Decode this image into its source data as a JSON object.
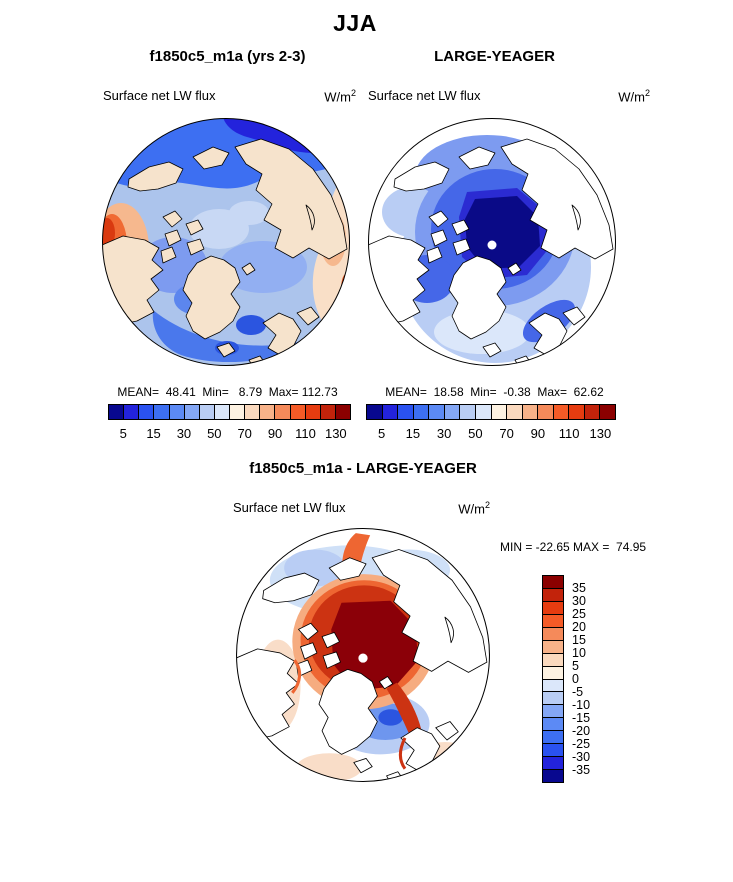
{
  "title": "JJA",
  "panels": [
    {
      "title": "f1850c5_m1a (yrs 2-3)",
      "field": "Surface net LW flux",
      "units_base": "W/m",
      "units_exp": "2",
      "stats": "MEAN=  48.41  Min=   8.79  Max= 112.73"
    },
    {
      "title": "LARGE-YEAGER",
      "field": "Surface net LW flux",
      "units_base": "W/m",
      "units_exp": "2",
      "stats": "MEAN=  18.58  Min=  -0.38  Max=  62.62"
    },
    {
      "title": "f1850c5_m1a - LARGE-YEAGER",
      "field": "Surface net LW flux",
      "units_base": "W/m",
      "units_exp": "2",
      "minmax": "MIN = -22.65 MAX =  74.95"
    }
  ],
  "colorbar_abs": {
    "labels": [
      "5",
      "15",
      "30",
      "50",
      "70",
      "90",
      "110",
      "130"
    ],
    "colors": [
      "#08088F",
      "#2323DC",
      "#2A52F0",
      "#3D6FF2",
      "#5C8AF5",
      "#84A7F5",
      "#B9CDF4",
      "#DBE7FA",
      "#FDF2E2",
      "#FAD9BE",
      "#F7B289",
      "#F58A5A",
      "#F55B27",
      "#E63C10",
      "#C2230B",
      "#8B0000"
    ]
  },
  "colorbar_diff": {
    "labels": [
      "35",
      "30",
      "25",
      "20",
      "15",
      "10",
      "5",
      "0",
      "-5",
      "-10",
      "-15",
      "-20",
      "-25",
      "-30",
      "-35"
    ],
    "colors": [
      "#8B0000",
      "#C2230B",
      "#E63C10",
      "#F55B27",
      "#F58A5A",
      "#F7B289",
      "#FAD9BE",
      "#FDF2E2",
      "#DBE7FA",
      "#B9CDF4",
      "#84A7F5",
      "#5C8AF5",
      "#3D6FF2",
      "#2A52F0",
      "#2323DC",
      "#08088F"
    ]
  },
  "chart_data": [
    {
      "type": "heatmap",
      "panel": "top-left",
      "title": "f1850c5_m1a (yrs 2-3)",
      "season": "JJA",
      "variable": "Surface net LW flux",
      "units": "W/m2",
      "projection": "north polar stereographic",
      "stats": {
        "mean": 48.41,
        "min": 8.79,
        "max": 112.73
      },
      "contour_levels": [
        5,
        10,
        15,
        20,
        30,
        40,
        50,
        60,
        70,
        80,
        90,
        100,
        110,
        120,
        130
      ],
      "tick_labels": [
        5,
        15,
        30,
        50,
        70,
        90,
        110,
        130
      ],
      "palette": "blue-white-red diverging, 16 boxes",
      "legend_position": "below map, horizontal",
      "description": "Full-field Arctic map: light periwinkle (~40-50) over central Arctic Ocean, deep blues (5-20) along top limb and subpolar seas, orange-red maximum (~110) at left limb, broad pale peach (60-80) over Siberian/right limb; coastlines drawn in black."
    },
    {
      "type": "heatmap",
      "panel": "top-right",
      "title": "LARGE-YEAGER",
      "season": "JJA",
      "variable": "Surface net LW flux",
      "units": "W/m2",
      "projection": "north polar stereographic",
      "stats": {
        "mean": 18.58,
        "min": -0.38,
        "max": 62.62
      },
      "contour_levels": [
        5,
        10,
        15,
        20,
        30,
        40,
        50,
        60,
        70,
        80,
        90,
        100,
        110,
        120,
        130
      ],
      "tick_labels": [
        5,
        15,
        30,
        50,
        70,
        90,
        110,
        130
      ],
      "palette": "blue-white-red diverging, 16 boxes",
      "legend_position": "below map, horizontal",
      "description": "Ocean-only observations: land masked white; dark navy minimum (<5) over central Arctic pack ice grading through royal and medium blues to pale blue (~30-50) in the North Atlantic; small white dot of missing data at the pole."
    },
    {
      "type": "heatmap",
      "panel": "bottom",
      "title": "f1850c5_m1a - LARGE-YEAGER",
      "season": "JJA",
      "variable": "Surface net LW flux",
      "units": "W/m2",
      "projection": "north polar stereographic",
      "stats": {
        "min": -22.65,
        "max": 74.95
      },
      "contour_levels": [
        -35,
        -30,
        -25,
        -20,
        -15,
        -10,
        -5,
        0,
        5,
        10,
        15,
        20,
        25,
        30,
        35
      ],
      "tick_labels": [
        35,
        30,
        25,
        20,
        15,
        10,
        5,
        0,
        -5,
        -10,
        -15,
        -20,
        -25,
        -30,
        -35
      ],
      "palette": "red-positive / blue-negative diverging, 16 boxes",
      "legend_position": "right of map, vertical",
      "description": "Difference map (model minus obs): dark maroon positive bias (>35) over the central Arctic with an orange-red halo, moderate negative (blue, -5 to -15) over the Greenland/Norwegian seas, pale blue along the top limb, land masked white; white dot at the pole."
    }
  ]
}
